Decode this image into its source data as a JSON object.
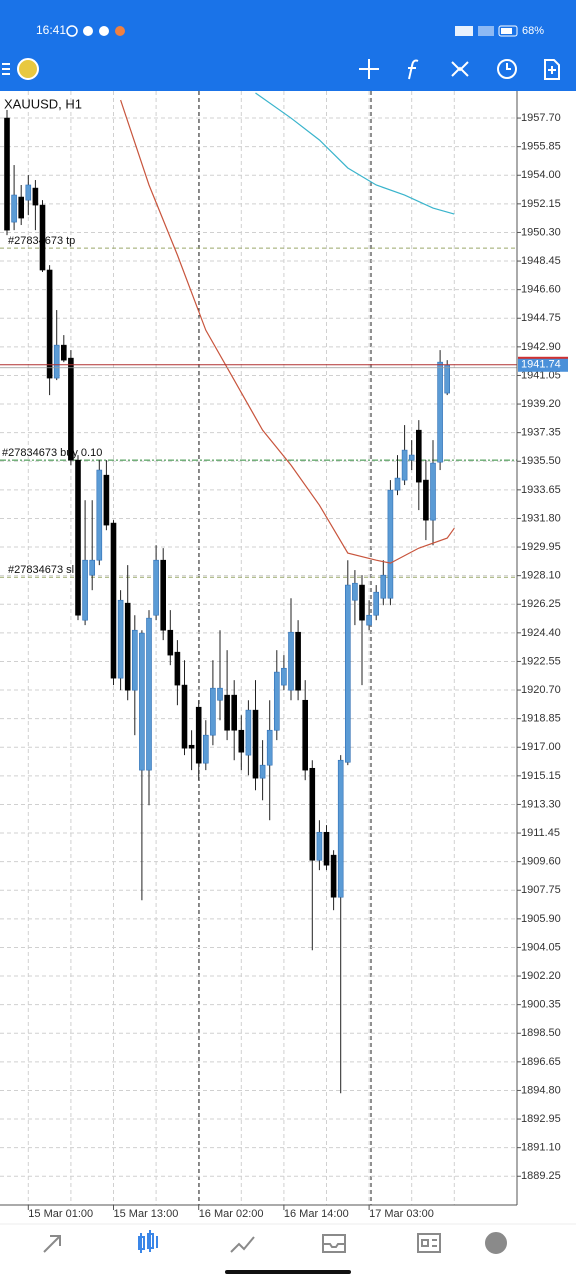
{
  "status_bar": {
    "time": "16:41",
    "battery": "68%"
  },
  "chart_data": {
    "type": "candlestick",
    "title": "XAUUSD, H1",
    "up_color": "#5b9bd5",
    "down_color": "#000000",
    "categories": [
      null,
      null,
      null,
      "15 Mar 01:00",
      null,
      null,
      null,
      null,
      null,
      null,
      null,
      null,
      null,
      null,
      null,
      "15 Mar 13:00",
      null,
      null,
      null,
      null,
      null,
      null,
      null,
      null,
      null,
      null,
      null,
      "16 Mar 02:00",
      null,
      null,
      null,
      null,
      null,
      null,
      null,
      null,
      null,
      null,
      null,
      "16 Mar 14:00",
      null,
      null,
      null,
      null,
      null,
      null,
      null,
      null,
      null,
      null,
      null,
      "17 Mar 03:00",
      null,
      null,
      null,
      null,
      null,
      null,
      null,
      null,
      null,
      null,
      null
    ],
    "open": [
      1957.7,
      1950.97,
      1952.59,
      1952.39,
      1953.17,
      1952.07,
      1947.87,
      1940.88,
      1943.01,
      1942.17,
      1935.57,
      1925.22,
      1928.13,
      1929.1,
      1934.6,
      1931.5,
      1921.47,
      1926.32,
      1920.69,
      1915.52,
      1915.52,
      1925.54,
      1929.1,
      1924.57,
      1923.15,
      1921.02,
      1917.13,
      1919.59,
      1915.97,
      1917.78,
      1920.04,
      1920.37,
      1920.37,
      1918.1,
      1916.49,
      1919.4,
      1915.0,
      1915.84,
      1918.1,
      1921.02,
      1920.69,
      1924.44,
      1920.04,
      1915.64,
      1909.69,
      1911.5,
      1910.02,
      1907.3,
      1916.03,
      1926.51,
      1927.49,
      1924.9,
      1925.54,
      1926.64,
      1926.64,
      1933.63,
      1934.28,
      1935.57,
      1937.51,
      1934.28,
      1931.69,
      1935.44,
      1939.91
    ],
    "high": [
      1958.22,
      1954.66,
      1953.37,
      1954.01,
      1953.69,
      1952.39,
      1948.19,
      1945.28,
      1943.66,
      1942.69,
      1935.9,
      1932.98,
      1932.98,
      1935.57,
      1935.57,
      1931.69,
      1927.16,
      1928.78,
      1925.54,
      1924.57,
      1925.87,
      1930.07,
      1929.88,
      1925.87,
      1923.93,
      1922.63,
      1918.1,
      1920.04,
      1918.75,
      1922.63,
      1924.57,
      1923.28,
      1921.34,
      1919.07,
      1920.04,
      1921.34,
      1917.46,
      1920.04,
      1923.28,
      1922.96,
      1926.64,
      1925.22,
      1921.34,
      1916.16,
      1912.28,
      1911.96,
      1910.34,
      1916.49,
      1929.1,
      1928.46,
      1928.13,
      1926.51,
      1927.49,
      1929.1,
      1934.28,
      1935.9,
      1937.84,
      1936.87,
      1938.16,
      1935.57,
      1936.87,
      1942.69,
      1942.04
    ],
    "low": [
      1950.13,
      1950.45,
      1950.78,
      1951.42,
      1950.45,
      1947.74,
      1939.78,
      1940.75,
      1941.91,
      1935.25,
      1925.22,
      1924.9,
      1927.16,
      1928.78,
      1931.04,
      1921.02,
      1920.69,
      1920.04,
      1917.78,
      1907.1,
      1913.25,
      1925.22,
      1923.93,
      1922.31,
      1919.72,
      1916.49,
      1915.52,
      1914.87,
      1915.52,
      1917.13,
      1918.75,
      1917.46,
      1916.16,
      1915.52,
      1915.19,
      1914.22,
      1913.57,
      1912.28,
      1917.46,
      1920.69,
      1920.04,
      1920.04,
      1914.87,
      1903.87,
      1909.05,
      1909.05,
      1906.46,
      1894.62,
      1915.84,
      1924.9,
      1921.02,
      1924.57,
      1925.22,
      1926.19,
      1926.19,
      1933.31,
      1933.96,
      1934.93,
      1932.34,
      1930.4,
      1930.07,
      1934.93,
      1939.78
    ],
    "close": [
      1950.45,
      1952.72,
      1951.23,
      1953.37,
      1952.07,
      1947.87,
      1940.88,
      1943.01,
      1942.04,
      1935.57,
      1925.54,
      1929.1,
      1929.1,
      1934.93,
      1931.37,
      1921.47,
      1926.51,
      1920.69,
      1924.57,
      1924.38,
      1925.35,
      1929.1,
      1924.57,
      1922.96,
      1921.02,
      1916.94,
      1916.94,
      1915.97,
      1917.78,
      1920.82,
      1920.82,
      1918.1,
      1918.1,
      1916.68,
      1919.4,
      1915.0,
      1915.84,
      1918.1,
      1921.86,
      1922.11,
      1924.44,
      1920.69,
      1915.52,
      1909.69,
      1911.5,
      1909.37,
      1907.3,
      1916.16,
      1927.49,
      1927.61,
      1925.22,
      1925.54,
      1927.03,
      1928.13,
      1933.63,
      1934.41,
      1936.22,
      1935.9,
      1934.15,
      1931.69,
      1935.38,
      1941.91,
      1941.72
    ],
    "lines": [
      {
        "color": "#c8553d",
        "x": [
          16,
          20,
          24,
          28,
          32,
          36,
          40,
          44,
          48,
          52,
          54,
          58,
          62,
          63
        ],
        "values": [
          1958.86,
          1953.37,
          1948.84,
          1943.98,
          1940.75,
          1937.51,
          1935.25,
          1932.66,
          1929.56,
          1929.1,
          1928.91,
          1929.88,
          1930.53,
          1931.17
        ]
      },
      {
        "color": "#3ab4cc",
        "x": [
          35,
          40,
          44,
          48,
          52,
          56,
          60,
          63
        ],
        "values": [
          1959.32,
          1957.7,
          1956.28,
          1954.47,
          1953.37,
          1952.72,
          1951.88,
          1951.49
        ]
      }
    ],
    "levels": [
      {
        "label": "#27834673 tp",
        "value": 1949.29,
        "color": "#9aa86a"
      },
      {
        "label": "#27834673 buy 0.10",
        "value": 1935.57,
        "color": "#2e8b3a"
      },
      {
        "label": "#27834673 sl",
        "value": 1928.0,
        "color": "#9aa86a"
      }
    ],
    "current_price": 1941.74,
    "ylim": [
      1887.39,
      1959.45
    ],
    "yticks": [
      {
        "value": 1957.7,
        "label": "1957.70"
      },
      1955.85,
      {
        "value": 1954,
        "label": "1954.00"
      },
      1952.15,
      {
        "value": 1950.3,
        "label": "1950.30"
      },
      1948.45,
      {
        "value": 1946.6,
        "label": "1946.60"
      },
      1944.75,
      {
        "value": 1942.9,
        "label": "1942.90"
      },
      1941.05,
      {
        "value": 1939.2,
        "label": "1939.20"
      },
      1937.35,
      {
        "value": 1935.5,
        "label": "1935.50"
      },
      1933.65,
      {
        "value": 1931.8,
        "label": "1931.80"
      },
      1929.95,
      {
        "value": 1928.1,
        "label": "1928.10"
      },
      1926.25,
      {
        "value": 1924.4,
        "label": "1924.40"
      },
      1922.55,
      {
        "value": 1920.7,
        "label": "1920.70"
      },
      1918.85,
      {
        "value": 1917,
        "label": "1917.00"
      },
      1915.15,
      {
        "value": 1913.3,
        "label": "1913.30"
      },
      1911.45,
      {
        "value": 1909.6,
        "label": "1909.60"
      },
      1907.75,
      {
        "value": 1905.9,
        "label": "1905.90"
      },
      1904.05,
      {
        "value": 1902.2,
        "label": "1902.20"
      },
      1900.35,
      {
        "value": 1898.5,
        "label": "1898.50"
      },
      1896.65,
      {
        "value": 1894.8,
        "label": "1894.80"
      },
      1892.95,
      {
        "value": 1891.1,
        "label": "1891.10"
      },
      1889.25
    ],
    "grid": true
  }
}
